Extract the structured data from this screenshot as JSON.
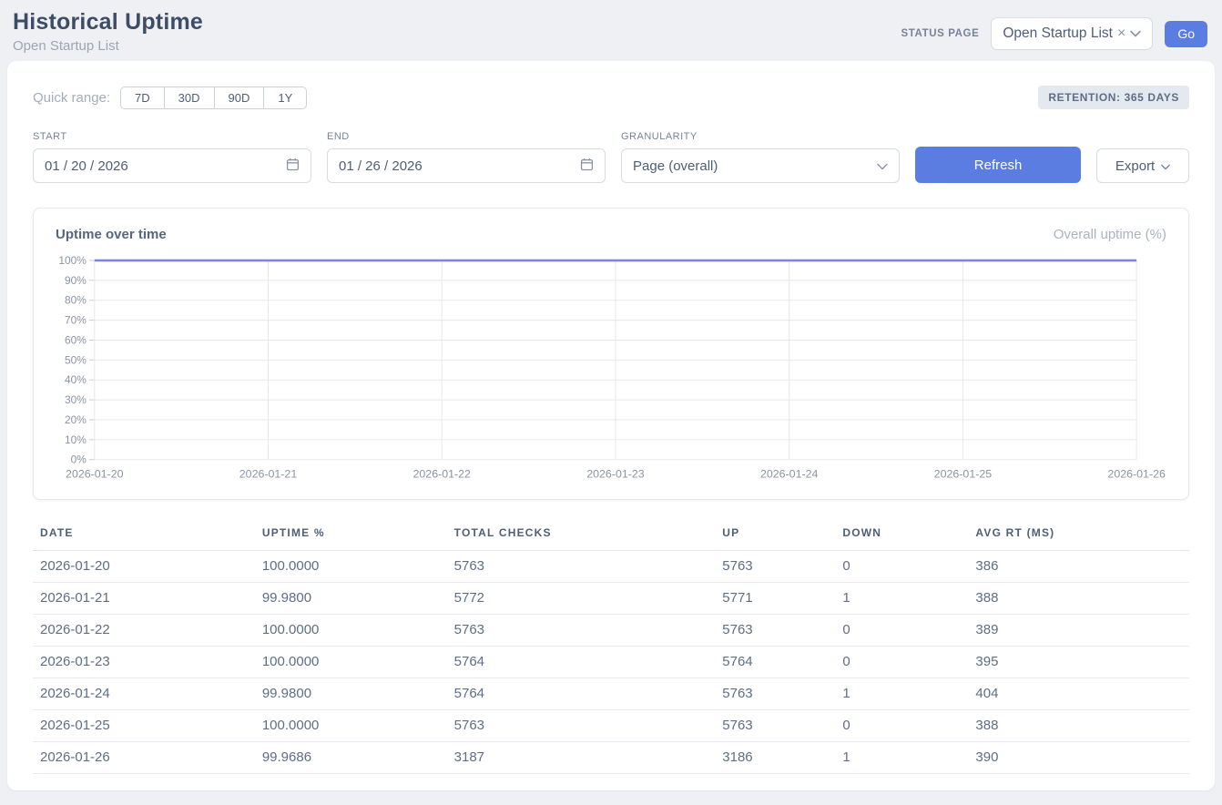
{
  "header": {
    "title": "Historical Uptime",
    "subtitle": "Open Startup List",
    "status_page_label": "STATUS PAGE",
    "status_page_value": "Open Startup List",
    "go_label": "Go"
  },
  "icons": {
    "clear": "×"
  },
  "filters": {
    "quick_range_label": "Quick range:",
    "quick_ranges": [
      "7D",
      "30D",
      "90D",
      "1Y"
    ],
    "retention_badge": "RETENTION: 365 DAYS",
    "start": {
      "label": "START",
      "value": "01 / 20 / 2026"
    },
    "end": {
      "label": "END",
      "value": "01 / 26 / 2026"
    },
    "granularity": {
      "label": "GRANULARITY",
      "value": "Page (overall)"
    },
    "refresh_label": "Refresh",
    "export_label": "Export"
  },
  "chart_data": {
    "type": "line",
    "title": "Uptime over time",
    "legend": [
      "Overall uptime (%)"
    ],
    "legend_position": "top-right",
    "x": [
      "2026-01-20",
      "2026-01-21",
      "2026-01-22",
      "2026-01-23",
      "2026-01-24",
      "2026-01-25",
      "2026-01-26"
    ],
    "series": [
      {
        "name": "Overall uptime (%)",
        "color": "#7b82e8",
        "values": [
          100.0,
          99.98,
          100.0,
          100.0,
          99.98,
          100.0,
          99.9686
        ]
      }
    ],
    "ylim": [
      0,
      100
    ],
    "yticks": [
      0,
      10,
      20,
      30,
      40,
      50,
      60,
      70,
      80,
      90,
      100
    ],
    "ytick_suffix": "%",
    "grid": true
  },
  "table": {
    "columns": [
      "DATE",
      "UPTIME %",
      "TOTAL CHECKS",
      "UP",
      "DOWN",
      "AVG RT (MS)"
    ],
    "rows": [
      [
        "2026-01-20",
        "100.0000",
        "5763",
        "5763",
        "0",
        "386"
      ],
      [
        "2026-01-21",
        "99.9800",
        "5772",
        "5771",
        "1",
        "388"
      ],
      [
        "2026-01-22",
        "100.0000",
        "5763",
        "5763",
        "0",
        "389"
      ],
      [
        "2026-01-23",
        "100.0000",
        "5764",
        "5764",
        "0",
        "395"
      ],
      [
        "2026-01-24",
        "99.9800",
        "5764",
        "5763",
        "1",
        "404"
      ],
      [
        "2026-01-25",
        "100.0000",
        "5763",
        "5763",
        "0",
        "388"
      ],
      [
        "2026-01-26",
        "99.9686",
        "3187",
        "3186",
        "1",
        "390"
      ]
    ]
  },
  "colors": {
    "accent": "#5b7de2",
    "line": "#7b82e8"
  }
}
